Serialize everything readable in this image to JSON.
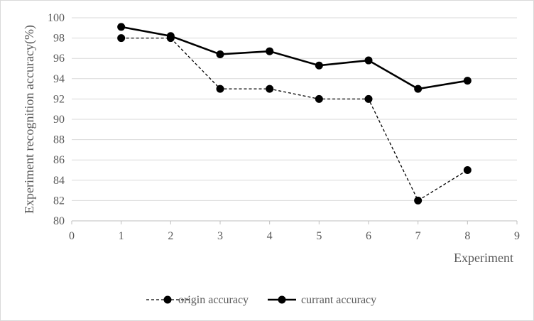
{
  "chart_data": {
    "type": "line",
    "title": "",
    "xlabel": "Experiment",
    "ylabel": "Experiment recognition accuracy(%)",
    "xlim": [
      0,
      9
    ],
    "ylim": [
      80,
      100
    ],
    "x_ticks": [
      0,
      1,
      2,
      3,
      4,
      5,
      6,
      7,
      8,
      9
    ],
    "y_ticks": [
      80,
      82,
      84,
      86,
      88,
      90,
      92,
      94,
      96,
      98,
      100
    ],
    "grid": "horizontal",
    "legend_position": "bottom",
    "series": [
      {
        "name": "origin accuracy",
        "style": "dashed",
        "color": "#000000",
        "x": [
          1,
          2,
          3,
          4,
          5,
          6,
          7,
          8
        ],
        "y": [
          98,
          98,
          93,
          93,
          92,
          92,
          82,
          85
        ]
      },
      {
        "name": "currant accuracy",
        "style": "solid",
        "color": "#000000",
        "x": [
          1,
          2,
          3,
          4,
          5,
          6,
          7,
          8
        ],
        "y": [
          99.1,
          98.2,
          96.4,
          96.7,
          95.3,
          95.8,
          93.0,
          93.8
        ]
      }
    ]
  }
}
